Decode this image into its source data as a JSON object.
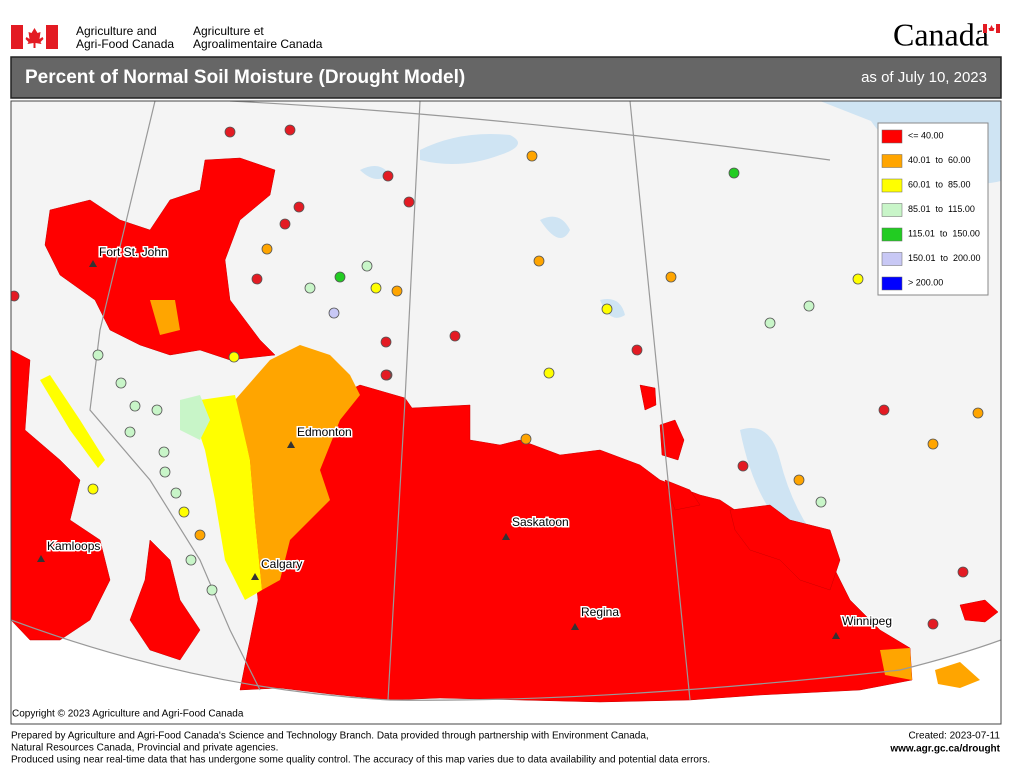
{
  "header": {
    "dept_en": [
      "Agriculture and",
      "Agri-Food Canada"
    ],
    "dept_fr": [
      "Agriculture et",
      "Agroalimentaire Canada"
    ],
    "wordmark": "Canada",
    "title": "Percent of Normal Soil Moisture (Drought Model)",
    "date": "as of July 10, 2023"
  },
  "legend": [
    {
      "label": "<= 40.00",
      "color": "#ff0000"
    },
    {
      "label": "40.01  to  60.00",
      "color": "#ffa500"
    },
    {
      "label": "60.01  to  85.00",
      "color": "#ffff00"
    },
    {
      "label": "85.01  to  115.00",
      "color": "#c8f5c8"
    },
    {
      "label": "115.01  to  150.00",
      "color": "#22cc22"
    },
    {
      "label": "150.01  to  200.00",
      "color": "#c8c8f5"
    },
    {
      "label": "> 200.00",
      "color": "#0000ff"
    }
  ],
  "cities": [
    "Fort St. John",
    "Edmonton",
    "Kamloops",
    "Calgary",
    "Saskatoon",
    "Regina",
    "Winnipeg"
  ],
  "copyright": "Copyright © 2023 Agriculture and Agri-Food Canada",
  "footer": {
    "notes": [
      "Prepared by Agriculture and Agri-Food Canada's Science and Technology Branch. Data provided through partnership with Environment Canada,",
      "Natural Resources Canada, Provincial and private agencies.",
      "Produced using near real-time data that has undergone some quality control. The accuracy of this map varies due to data availability and potential data errors."
    ],
    "created": "Created: 2023-07-11",
    "url": "www.agr.gc.ca/drought"
  }
}
